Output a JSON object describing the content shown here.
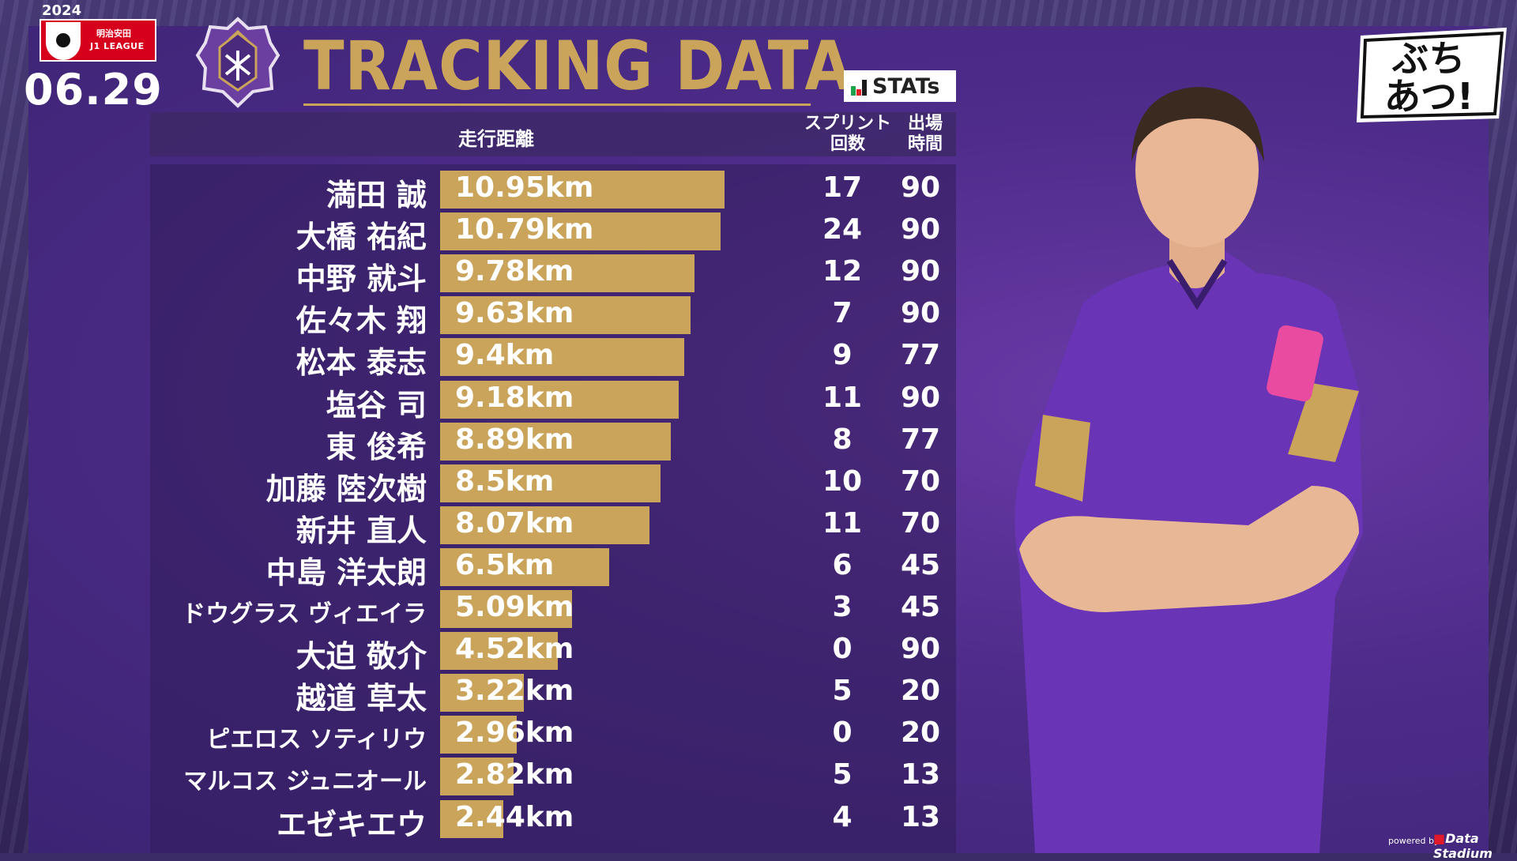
{
  "league": {
    "year": "2024",
    "sponsor": "明治安田",
    "name": "J1 LEAGUE"
  },
  "match_date": "06.29",
  "title": "TRACKING DATA",
  "stats_logo": "STATs",
  "columns": {
    "distance": "走行距離",
    "sprints": [
      "スプリント",
      "回数"
    ],
    "minutes": [
      "出場",
      "時間"
    ]
  },
  "powered_by": "powered by",
  "provider": "Data Stadium",
  "show_logo": [
    "ぶち",
    "あつ!"
  ],
  "colors": {
    "bar": "#c9a45a",
    "title": "#c9a45a",
    "panel": "#4e2c8a"
  },
  "chart_data": {
    "type": "bar",
    "orientation": "horizontal",
    "title": "TRACKING DATA",
    "xlabel": "走行距離",
    "unit": "km",
    "categories": [
      "満田 誠",
      "大橋 祐紀",
      "中野 就斗",
      "佐々木 翔",
      "松本 泰志",
      "塩谷 司",
      "東 俊希",
      "加藤 陸次樹",
      "新井 直人",
      "中島 洋太朗",
      "ドウグラス ヴィエイラ",
      "大迫 敬介",
      "越道 草太",
      "ピエロス ソティリウ",
      "マルコス ジュニオール",
      "エゼキエウ"
    ],
    "values": [
      10.95,
      10.79,
      9.78,
      9.63,
      9.4,
      9.18,
      8.89,
      8.5,
      8.07,
      6.5,
      5.09,
      4.52,
      3.22,
      2.96,
      2.82,
      2.44
    ],
    "labels": [
      "10.95km",
      "10.79km",
      "9.78km",
      "9.63km",
      "9.4km",
      "9.18km",
      "8.89km",
      "8.5km",
      "8.07km",
      "6.5km",
      "5.09km",
      "4.52km",
      "3.22km",
      "2.96km",
      "2.82km",
      "2.44km"
    ],
    "sprints": [
      "17",
      "24",
      "12",
      "7",
      "9",
      "11",
      "8",
      "10",
      "11",
      "6",
      "3",
      "0",
      "5",
      "0",
      "5",
      "4"
    ],
    "minutes": [
      "90",
      "90",
      "90",
      "90",
      "77",
      "90",
      "77",
      "70",
      "70",
      "45",
      "45",
      "90",
      "20",
      "20",
      "13",
      "13"
    ]
  }
}
